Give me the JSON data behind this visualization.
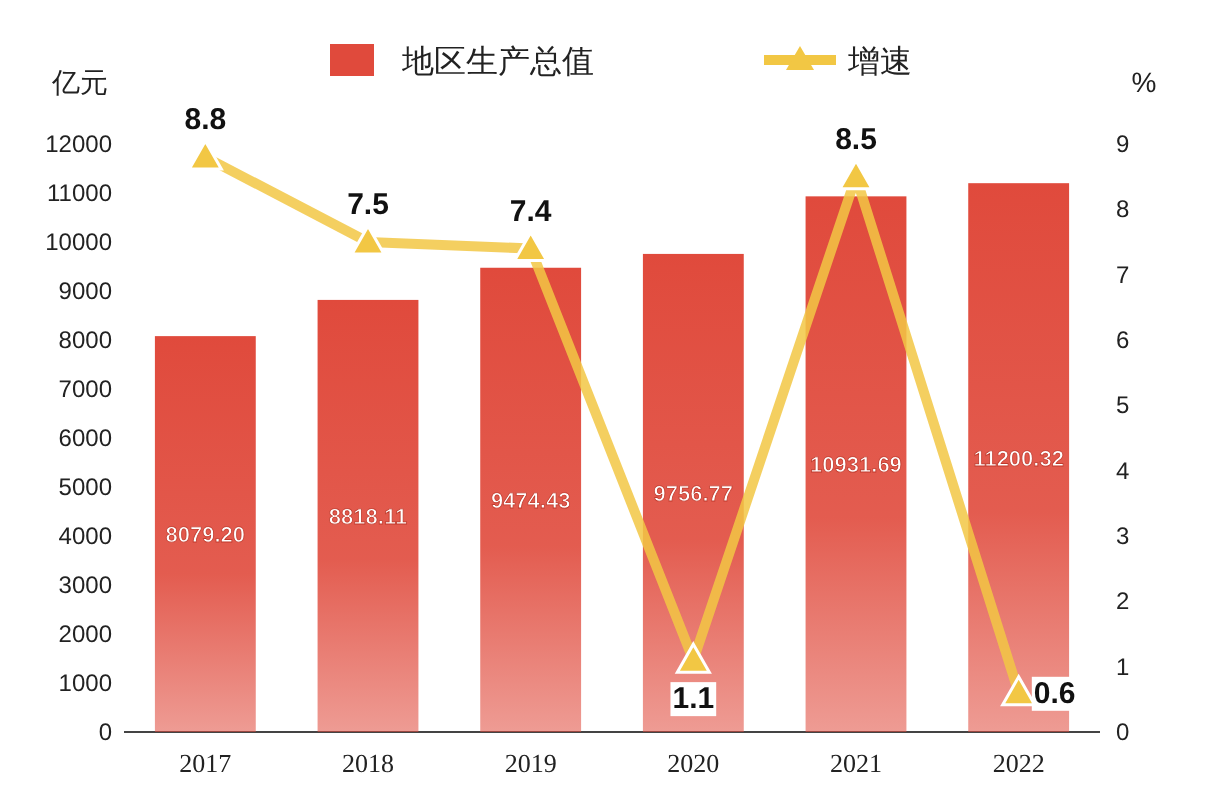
{
  "chart_data": {
    "type": "bar",
    "categories": [
      "2017",
      "2018",
      "2019",
      "2020",
      "2021",
      "2022"
    ],
    "ylabel": "亿元",
    "y2label": "%",
    "ylim": [
      0,
      12000
    ],
    "yticks": [
      0,
      1000,
      2000,
      3000,
      4000,
      5000,
      6000,
      7000,
      8000,
      9000,
      10000,
      11000,
      12000
    ],
    "y2lim": [
      0,
      9
    ],
    "y2ticks": [
      0,
      1,
      2,
      3,
      4,
      5,
      6,
      7,
      8,
      9
    ],
    "legend": "top",
    "data_labels": true,
    "series": [
      {
        "name": "地区生产总值",
        "color": "#e04a3c",
        "values": [
          8079.2,
          8818.11,
          9474.43,
          9756.77,
          10931.69,
          11200.32
        ],
        "value_labels": [
          "8079.20",
          "8818.11",
          "9474.43",
          "9756.77",
          "10931.69",
          "11200.32"
        ]
      },
      {
        "type": "line",
        "name": "增速",
        "color": "#f2c744",
        "axis": "y2",
        "marker": "triangle",
        "values": [
          8.8,
          7.5,
          7.4,
          1.1,
          8.5,
          0.6
        ]
      }
    ]
  }
}
